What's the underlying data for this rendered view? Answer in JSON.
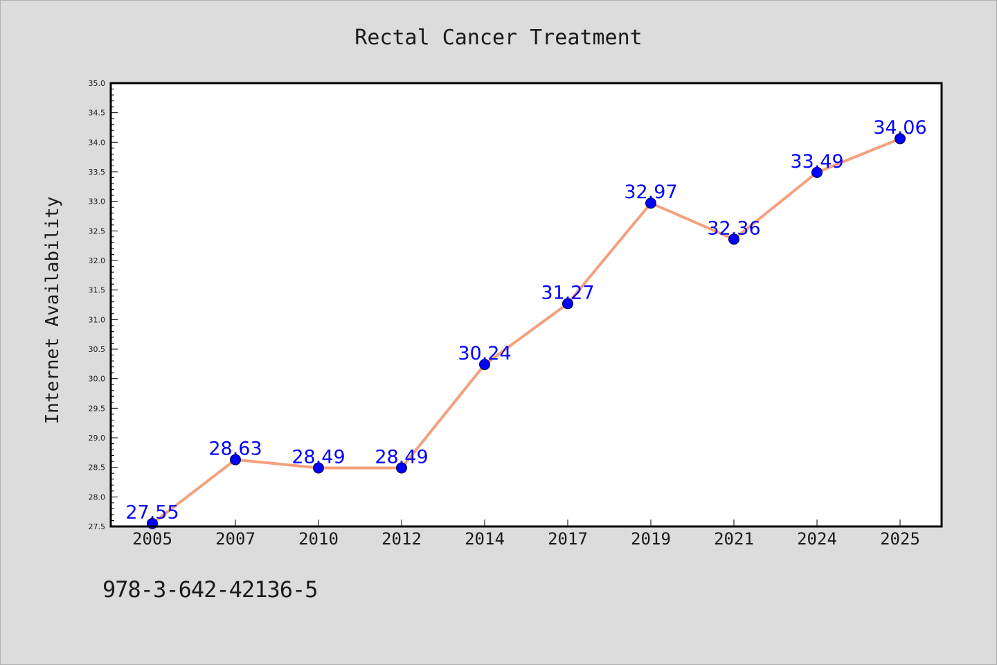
{
  "chart_data": {
    "type": "line",
    "title": "Rectal Cancer Treatment",
    "xlabel": "",
    "ylabel": "Internet Availability",
    "categories": [
      "2005",
      "2007",
      "2010",
      "2012",
      "2014",
      "2017",
      "2019",
      "2021",
      "2024",
      "2025"
    ],
    "series": [
      {
        "values": [
          27.55,
          28.63,
          28.49,
          28.49,
          30.24,
          31.27,
          32.97,
          32.36,
          33.49,
          34.06
        ],
        "line_color": "#f4a07e",
        "marker_color": "#0000ff",
        "label_color": "#0000ff"
      }
    ],
    "ylim": [
      27.5,
      35.0
    ],
    "y_ticks": [
      "27.5",
      "28.0",
      "28.5",
      "29.0",
      "29.5",
      "30.0",
      "30.5",
      "31.0",
      "31.5",
      "32.0",
      "32.5",
      "33.0",
      "33.5",
      "34.0",
      "34.5",
      "35.0"
    ],
    "grid": false,
    "legend": "none"
  },
  "footnote": "978-3-642-42136-5",
  "colors": {
    "background": "#dcdcdc",
    "plot_background": "#ffffff"
  }
}
